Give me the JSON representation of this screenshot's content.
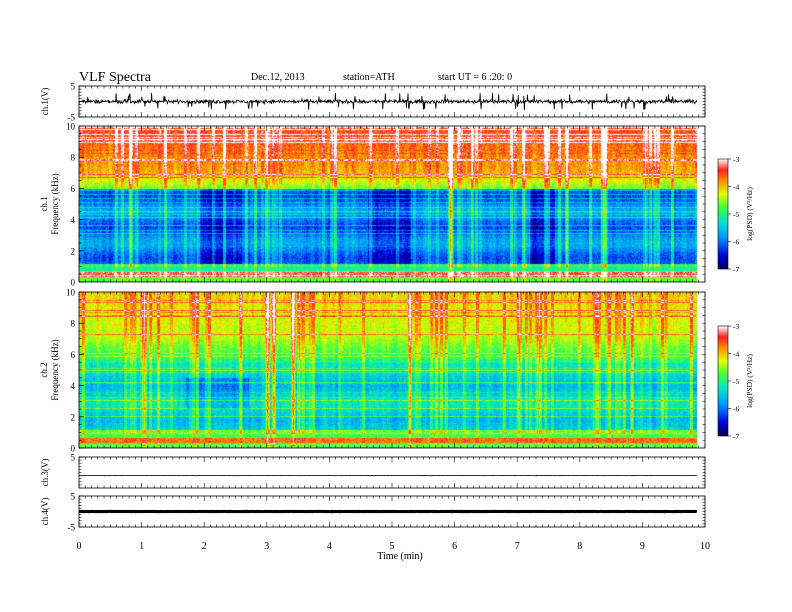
{
  "header": {
    "title": "VLF  Spectra",
    "date": "Dec.12, 2013",
    "station": "station=ATH",
    "start": "start  UT  =   6  :20: 0"
  },
  "chart_data": [
    {
      "type": "line",
      "panel": "ch1-waveform",
      "ylabel": "ch.1(V)",
      "xlim": [
        0,
        10
      ],
      "ylim": [
        -5,
        5
      ],
      "yticks": [
        "5",
        "-5"
      ],
      "note_values": "noisy broadband waveform, typical amplitude about +/-1 V with spikes to about +/-2.5 V"
    },
    {
      "type": "heatmap",
      "panel": "ch1-spectrogram",
      "ylabel": "ch.1\nFrequency  (kHz)",
      "xlim": [
        0,
        10
      ],
      "ylim": [
        0,
        10
      ],
      "yticks": [
        "0",
        "2",
        "4",
        "6",
        "8",
        "10"
      ],
      "colorbar": {
        "label": "log(PSD) (V²/Hz)",
        "range": [
          -7,
          -3
        ],
        "ticks": [
          "-3",
          "-4",
          "-5",
          "-6",
          "-7"
        ]
      },
      "features": {
        "strong_band_khz": 0.5,
        "high_band_khz": [
          7,
          10
        ],
        "low_band_khz": [
          1,
          6
        ]
      }
    },
    {
      "type": "heatmap",
      "panel": "ch2-spectrogram",
      "ylabel": "ch.2\nFrequency  (kHz)",
      "xlim": [
        0,
        10
      ],
      "ylim": [
        0,
        10
      ],
      "yticks": [
        "0",
        "2",
        "4",
        "6",
        "8",
        "10"
      ],
      "colorbar": {
        "label": "log(PSD) (V²/Hz)",
        "range": [
          -7,
          -3
        ],
        "ticks": [
          "-3",
          "-4",
          "-5",
          "-6",
          "-7"
        ]
      }
    },
    {
      "type": "line",
      "panel": "ch3-waveform",
      "ylabel": "ch.3(V)",
      "xlim": [
        0,
        10
      ],
      "ylim": [
        -5,
        5
      ],
      "yticks": [
        "5"
      ],
      "values_description": "flat line near -1 V"
    },
    {
      "type": "line",
      "panel": "ch4-waveform",
      "ylabel": "ch.4(V)",
      "xlim": [
        0,
        10
      ],
      "ylim": [
        -5,
        5
      ],
      "yticks": [
        "5",
        "-5"
      ],
      "values_description": "thick flat line near 0 V"
    }
  ],
  "xaxis": {
    "label": "Time  (min)",
    "ticks": [
      "0",
      "1",
      "2",
      "3",
      "4",
      "5",
      "6",
      "7",
      "8",
      "9",
      "10"
    ]
  }
}
